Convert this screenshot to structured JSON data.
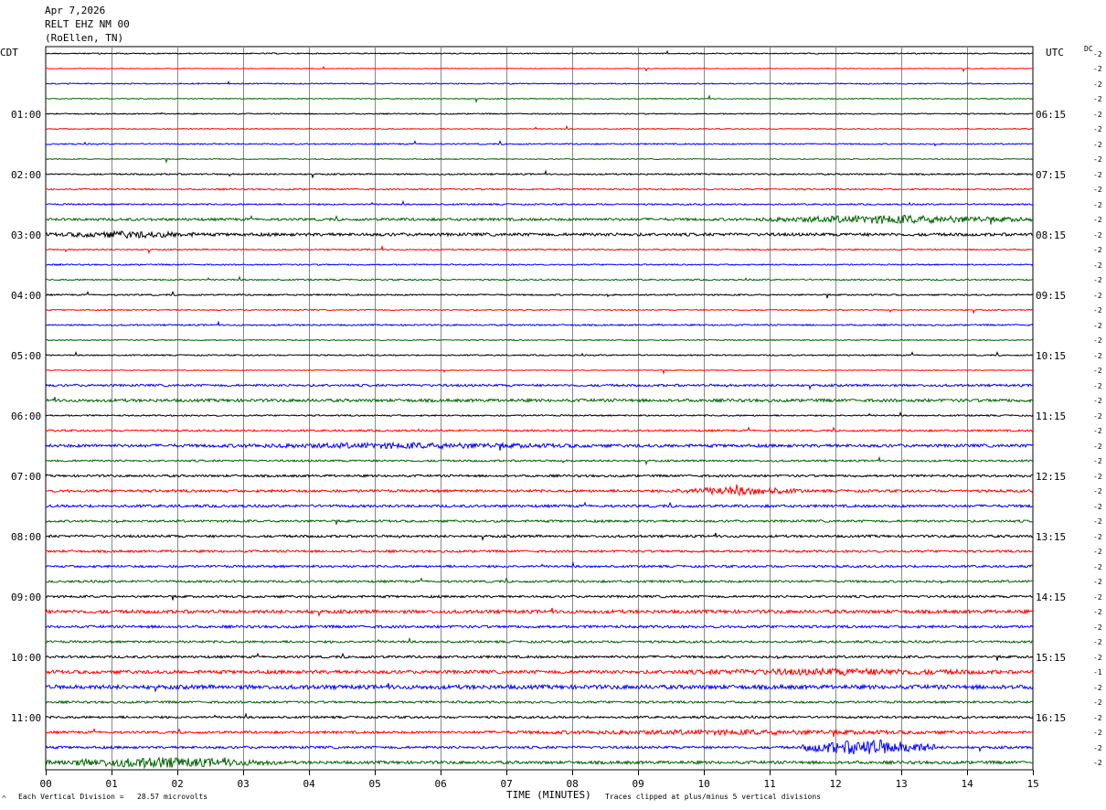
{
  "header": {
    "date": "Apr 7,2026",
    "station": "RELT EHZ NM 00",
    "location": "(RoEllen, TN)"
  },
  "left_tz": "CDT",
  "right_tz": "UTC",
  "dc_label": "DC",
  "footer": {
    "division_note": "Each Vertical Division =   28.57 microvolts",
    "clip_note": "Traces clipped at plus/minus 5 vertical divisions",
    "mark": "^"
  },
  "chart_data": {
    "type": "line",
    "title": "",
    "xlabel": "TIME (MINUTES)",
    "xlim": [
      0,
      15
    ],
    "x_ticks": [
      "00",
      "01",
      "02",
      "03",
      "04",
      "05",
      "06",
      "07",
      "08",
      "09",
      "10",
      "11",
      "12",
      "13",
      "14",
      "15"
    ],
    "left_hour_labels": [
      "01:00",
      "02:00",
      "03:00",
      "04:00",
      "05:00",
      "06:00",
      "07:00",
      "08:00",
      "09:00",
      "10:00",
      "11:00"
    ],
    "right_hour_labels": [
      "06:15",
      "07:15",
      "08:15",
      "09:15",
      "10:15",
      "11:15",
      "12:15",
      "13:15",
      "14:15",
      "15:15",
      "16:15"
    ],
    "trace_count": 48,
    "trace_colors": [
      "#000000",
      "#ff0000",
      "#0000ff",
      "#006400"
    ],
    "right_values": [
      "-2",
      "-2",
      "-2",
      "-2",
      "-2",
      "-2",
      "-2",
      "-2",
      "-2",
      "-2",
      "-2",
      "-2",
      "-2",
      "-2",
      "-2",
      "-2",
      "-2",
      "-2",
      "-2",
      "-2",
      "-2",
      "-2",
      "-2",
      "-2",
      "-2",
      "-2",
      "-2",
      "-2",
      "-2",
      "-2",
      "-2",
      "-2",
      "-2",
      "-2",
      "-2",
      "-2",
      "-2",
      "-2",
      "-2",
      "-2",
      "-2",
      "-1",
      "-2",
      "-2",
      "-2",
      "-2",
      "-2",
      "-2"
    ],
    "trace_noise": [
      0.6,
      0.4,
      0.6,
      0.5,
      0.6,
      0.5,
      0.7,
      0.5,
      0.8,
      0.8,
      0.8,
      1.4,
      1.6,
      0.7,
      0.7,
      0.8,
      0.8,
      0.6,
      0.8,
      0.6,
      0.7,
      0.4,
      1.2,
      1.6,
      0.8,
      1.0,
      1.6,
      1.0,
      1.2,
      1.4,
      1.4,
      1.2,
      1.3,
      1.2,
      1.2,
      1.2,
      1.2,
      1.8,
      1.4,
      1.2,
      1.3,
      1.8,
      2.2,
      1.2,
      1.2,
      1.3,
      1.3,
      1.6
    ],
    "bursts": [
      {
        "trace": 11,
        "from": 10.8,
        "to": 15.0,
        "amp": 5
      },
      {
        "trace": 12,
        "from": 0.0,
        "to": 2.5,
        "amp": 4
      },
      {
        "trace": 26,
        "from": 2.0,
        "to": 9.0,
        "amp": 3.5
      },
      {
        "trace": 29,
        "from": 9.5,
        "to": 11.5,
        "amp": 5
      },
      {
        "trace": 41,
        "from": 9.0,
        "to": 15.0,
        "amp": 4
      },
      {
        "trace": 45,
        "from": 6.0,
        "to": 15.0,
        "amp": 3
      },
      {
        "trace": 46,
        "from": 11.5,
        "to": 13.5,
        "amp": 9
      },
      {
        "trace": 47,
        "from": 0.0,
        "to": 3.5,
        "amp": 6
      }
    ]
  }
}
